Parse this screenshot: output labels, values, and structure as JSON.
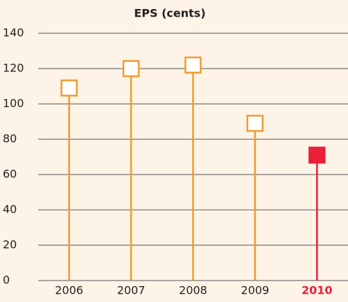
{
  "chart_data": {
    "type": "lollipop",
    "title": "EPS (cents)",
    "categories": [
      "2006",
      "2007",
      "2008",
      "2009",
      "2010"
    ],
    "values": [
      109,
      120,
      122,
      89,
      71
    ],
    "colors": [
      "#f39a2c",
      "#f39a2c",
      "#f39a2c",
      "#f39a2c",
      "#e8203a"
    ],
    "filled": [
      false,
      false,
      false,
      false,
      true
    ],
    "ylim": [
      0,
      140
    ],
    "yticks": [
      0,
      20,
      40,
      60,
      80,
      100,
      120,
      140
    ],
    "grid": true
  }
}
